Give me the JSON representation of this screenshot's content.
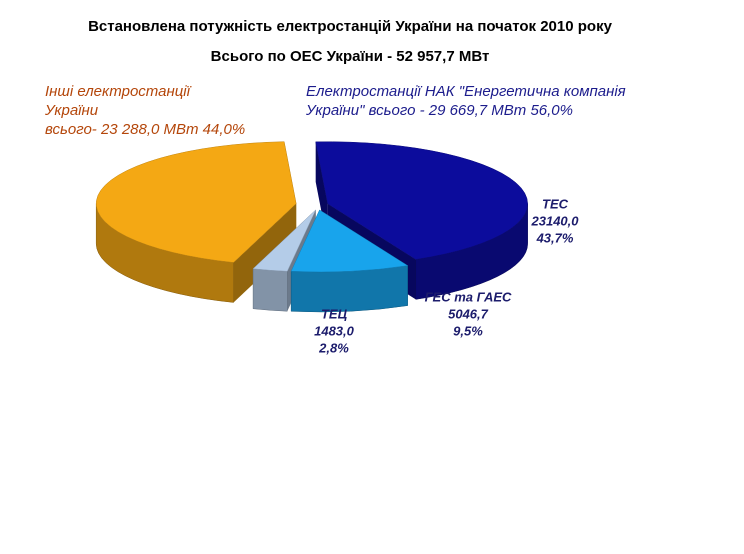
{
  "chart_data": {
    "type": "pie",
    "title": "Встановлена потужність електростанцій України на початок 2010 року",
    "subtitle": "Всього по ОЕС України - 52 957,7 МВт",
    "annotations": [
      {
        "lines": [
          "Інші електростанції",
          "України",
          "всього- 23 288,0 МВт  44,0%"
        ],
        "color": "#b4460a"
      },
      {
        "lines": [
          "Електростанції НАК \"Енергетична компанія",
          "України\" всього -  29 669,7 МВт  56,0%"
        ],
        "color": "#1c1c8c"
      }
    ],
    "categories": [
      "ТЕС",
      "ГЕС та ГАЕС",
      "ТЕЦ",
      null
    ],
    "values": [
      23140.0,
      5046.7,
      1483.0,
      23288.0
    ],
    "value_labels": [
      "23140,0",
      "5046,7",
      "1483,0",
      null
    ],
    "percent_labels": [
      "43,7%",
      "9,5%",
      "2,8%",
      null
    ],
    "colors": [
      "#0c0c9c",
      "#18a4ec",
      "#b4cce8",
      "#f4a814"
    ]
  }
}
